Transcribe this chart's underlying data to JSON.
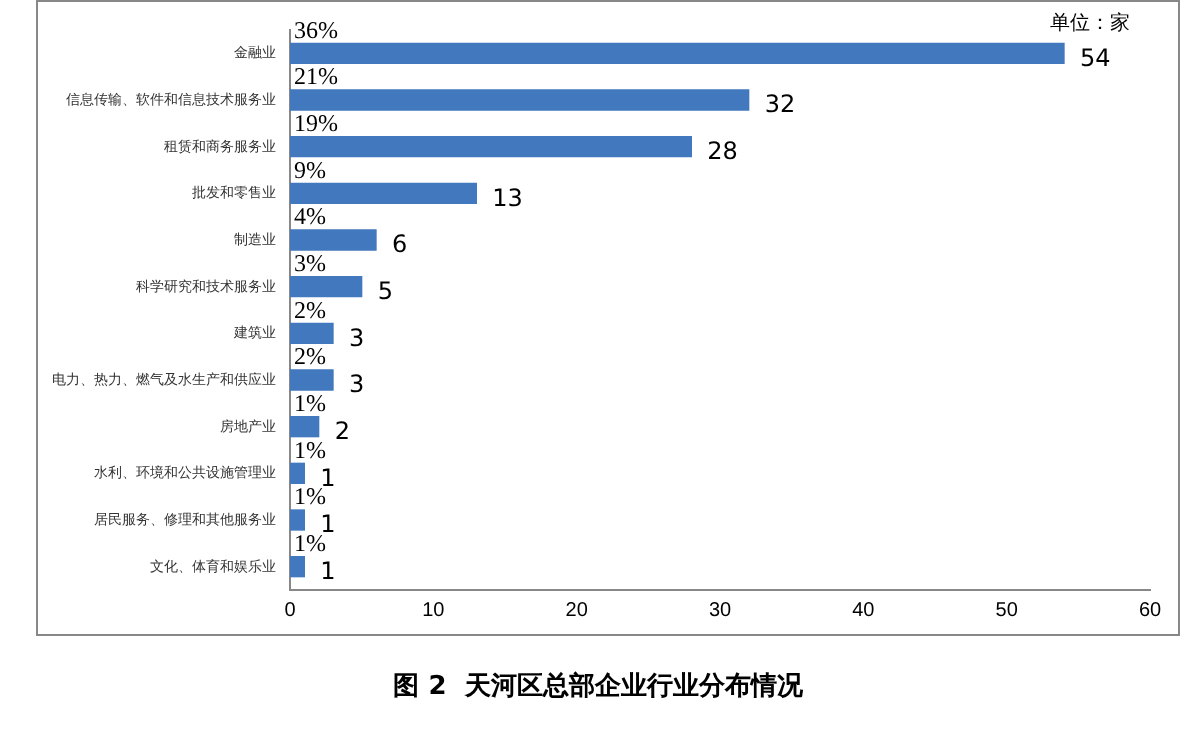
{
  "chart_data": {
    "type": "bar",
    "orientation": "horizontal",
    "title": "图 2  天河区总部企业行业分布情况",
    "categories": [
      "金融业",
      "信息传输、软件和信息技术服务业",
      "租赁和商务服务业",
      "批发和零售业",
      "制造业",
      "科学研究和技术服务业",
      "建筑业",
      "电力、热力、燃气及水生产和供应业",
      "房地产业",
      "水利、环境和公共设施管理业",
      "居民服务、修理和其他服务业",
      "文化、体育和娱乐业"
    ],
    "values": [
      54,
      32,
      28,
      13,
      6,
      5,
      3,
      3,
      2,
      1,
      1,
      1
    ],
    "color": "#4178be",
    "xlim": [
      0,
      60
    ],
    "xticks": [
      0,
      10,
      20,
      30,
      40,
      50,
      60
    ],
    "grid": false,
    "legend": false,
    "data_labels": true,
    "annotations": [
      "单位：家",
      {
        "text": "36%",
        "y": "金融业"
      },
      {
        "text": "21%",
        "y": "信息传输、软件和信息技术服务业"
      },
      {
        "text": "19%",
        "y": "租赁和商务服务业"
      },
      {
        "text": "9%",
        "y": "批发和零售业"
      },
      {
        "text": "4%",
        "y": "制造业"
      },
      {
        "text": "3%",
        "y": "科学研究和技术服务业"
      },
      {
        "text": "2%",
        "y": "建筑业"
      },
      {
        "text": "2%",
        "y": "电力、热力、燃气及水生产和供应业"
      },
      {
        "text": "1%",
        "y": "房地产业"
      },
      {
        "text": "1%",
        "y": "水利、环境和公共设施管理业"
      },
      {
        "text": "1%",
        "y": "居民服务、修理和其他服务业"
      },
      {
        "text": "1%",
        "y": "文化、体育和娱乐业"
      }
    ]
  }
}
